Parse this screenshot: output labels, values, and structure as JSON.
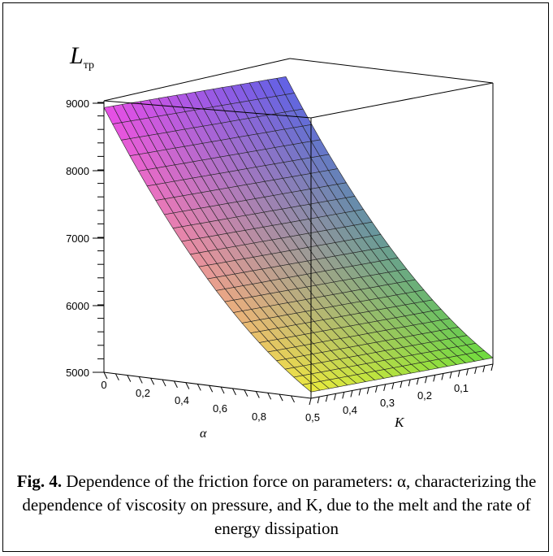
{
  "chart_data": {
    "type": "surface3d",
    "z_label": "L",
    "z_label_sub": "тр",
    "x_label": "α",
    "y_label": "K",
    "z_ticks": [
      "5000",
      "6000",
      "7000",
      "8000",
      "9000"
    ],
    "x_ticks": [
      "0",
      "0,2",
      "0,4",
      "0,6",
      "0,8"
    ],
    "y_ticks": [
      "0,5",
      "0,4",
      "0,3",
      "0,2",
      "0,1"
    ],
    "zlim": [
      5000,
      9200
    ],
    "xlim": [
      0,
      0.9
    ],
    "ylim": [
      0,
      0.5
    ],
    "corner_values": {
      "alpha_0_K_0": 9200,
      "alpha_0_K_0.5": 9200,
      "alpha_0.9_K_0": 5100,
      "alpha_0.9_K_0.5": 5100
    },
    "grid": {
      "alpha_lines": 20,
      "K_lines": 24
    },
    "colormap": "hsv-gradient"
  },
  "caption": {
    "label": "Fig. 4.",
    "text": " Dependence of the friction force on parameters: α, characterizing the dependence of viscosity on pressure, and K, due to the melt and the rate of energy dissipation"
  }
}
